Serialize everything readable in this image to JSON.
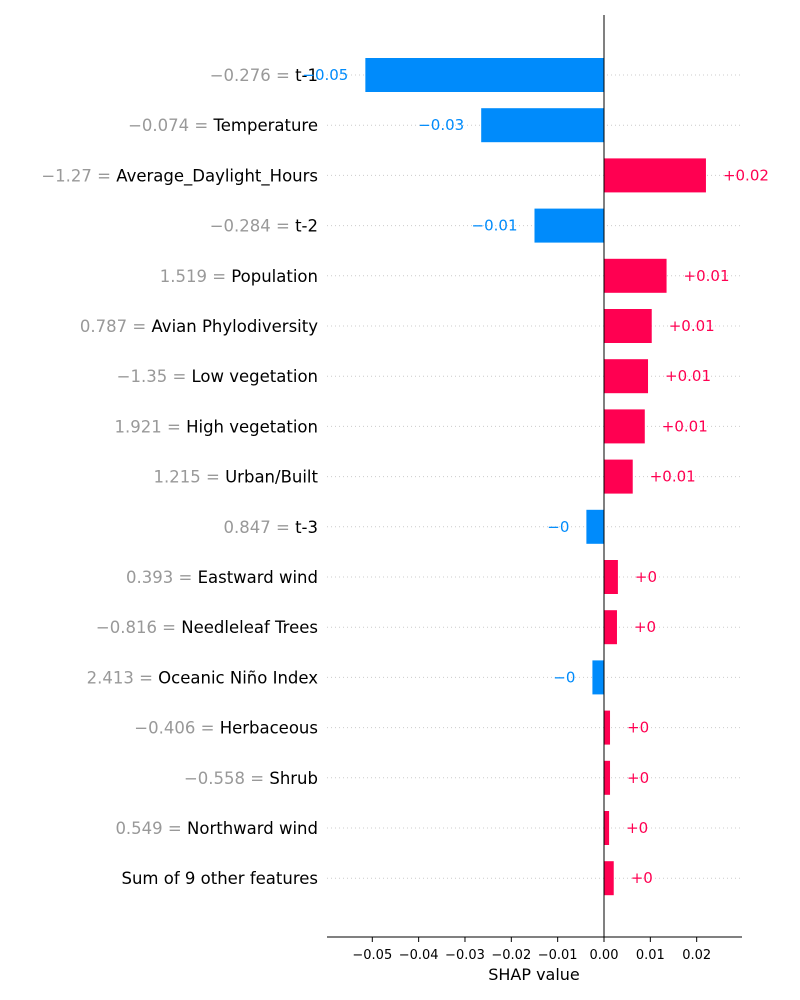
{
  "chart_data": {
    "type": "bar",
    "orientation": "horizontal",
    "title": "",
    "xlabel": "SHAP value",
    "ylabel": "",
    "xlim": [
      -0.06,
      0.03
    ],
    "xticks": [
      -0.05,
      -0.04,
      -0.03,
      -0.02,
      -0.01,
      0.0,
      0.01,
      0.02
    ],
    "xtick_labels": [
      "−0.05",
      "−0.04",
      "−0.03",
      "−0.02",
      "−0.01",
      "0.00",
      "0.01",
      "0.02"
    ],
    "grid": "dotted horizontal row guides",
    "colors": {
      "positive": "#ff0051",
      "negative": "#008bfb",
      "feature_value": "#999999",
      "feature_name": "#000000"
    },
    "bars": [
      {
        "feature": "t-1",
        "feature_value": "−0.276",
        "value": -0.0515,
        "label": "−0.05"
      },
      {
        "feature": "Temperature",
        "feature_value": "−0.074",
        "value": -0.0265,
        "label": "−0.03"
      },
      {
        "feature": "Average_Daylight_Hours",
        "feature_value": "−1.27",
        "value": 0.022,
        "label": "+0.02"
      },
      {
        "feature": "t-2",
        "feature_value": "−0.284",
        "value": -0.015,
        "label": "−0.01"
      },
      {
        "feature": "Population",
        "feature_value": "1.519",
        "value": 0.0135,
        "label": "+0.01"
      },
      {
        "feature": "Avian Phylodiversity",
        "feature_value": "0.787",
        "value": 0.0103,
        "label": "+0.01"
      },
      {
        "feature": "Low vegetation",
        "feature_value": "−1.35",
        "value": 0.0095,
        "label": "+0.01"
      },
      {
        "feature": "High vegetation",
        "feature_value": "1.921",
        "value": 0.0088,
        "label": "+0.01"
      },
      {
        "feature": "Urban/Built",
        "feature_value": "1.215",
        "value": 0.0062,
        "label": "+0.01"
      },
      {
        "feature": "t-3",
        "feature_value": "0.847",
        "value": -0.0038,
        "label": "−0"
      },
      {
        "feature": "Eastward wind",
        "feature_value": "0.393",
        "value": 0.003,
        "label": "+0"
      },
      {
        "feature": "Needleleaf Trees",
        "feature_value": "−0.816",
        "value": 0.0028,
        "label": "+0"
      },
      {
        "feature": "Oceanic Niño Index",
        "feature_value": "2.413",
        "value": -0.0025,
        "label": "−0"
      },
      {
        "feature": "Herbaceous",
        "feature_value": "−0.406",
        "value": 0.0013,
        "label": "+0"
      },
      {
        "feature": "Shrub",
        "feature_value": "−0.558",
        "value": 0.0013,
        "label": "+0"
      },
      {
        "feature": "Northward wind",
        "feature_value": "0.549",
        "value": 0.0011,
        "label": "+0"
      },
      {
        "feature": "Sum of 9 other features",
        "feature_value": "",
        "value": 0.0021,
        "label": "+0"
      }
    ]
  }
}
